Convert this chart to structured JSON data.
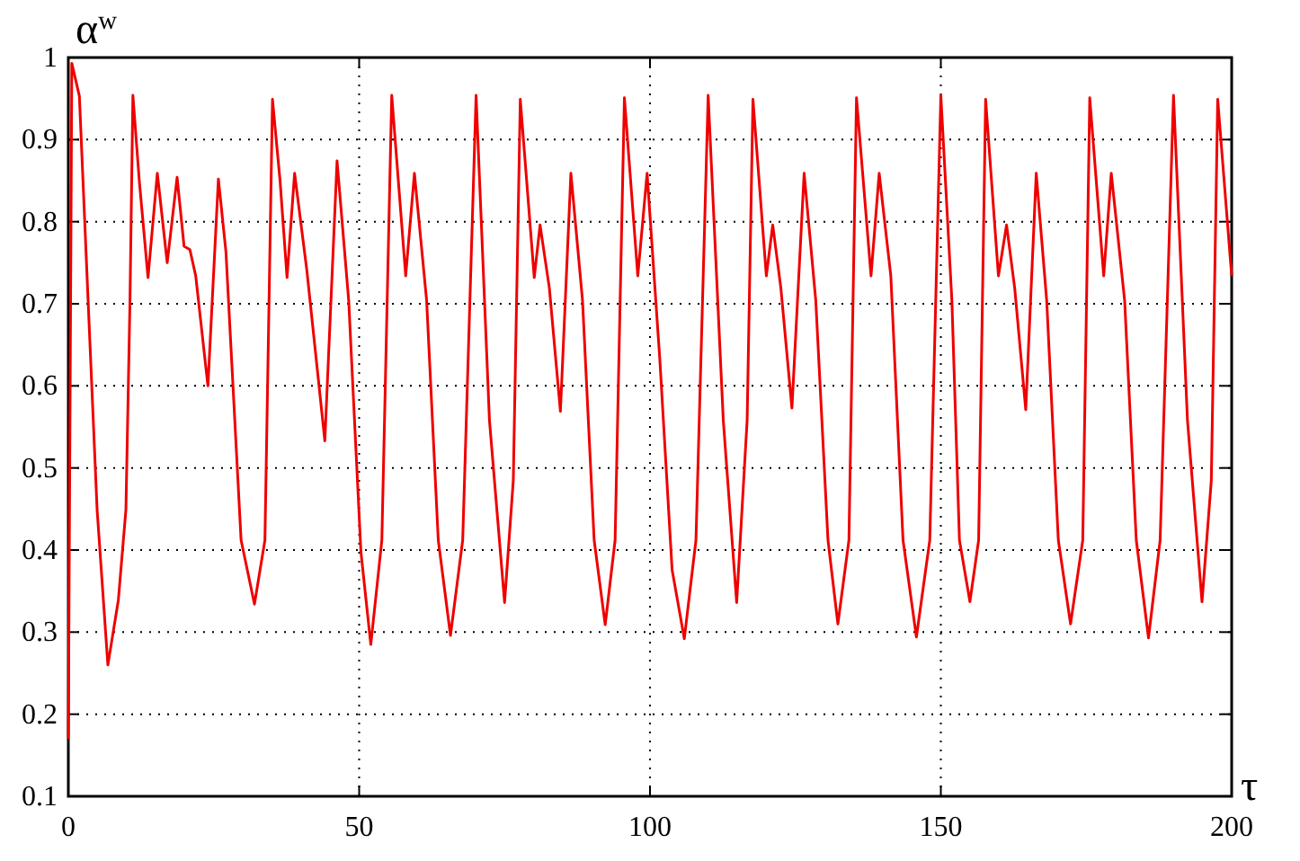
{
  "chart_data": {
    "type": "line",
    "xlabel": "τ",
    "ylabel": "α$^{w}$",
    "xlim": [
      0,
      200
    ],
    "ylim": [
      0.1,
      1
    ],
    "xticks": [
      0,
      50,
      100,
      150,
      200
    ],
    "yticks": [
      0.1,
      0.2,
      0.3,
      0.4,
      0.5,
      0.6,
      0.7,
      0.8,
      0.9,
      1
    ],
    "grid": true,
    "marker": "none",
    "line_style": "solid",
    "series": [
      {
        "color": "#ee0000",
        "x": [
          0,
          0.6,
          1.9,
          3.4,
          4.95,
          6.8,
          8.6,
          9.9,
          10.6,
          11.1,
          12.2,
          13.7,
          15.3,
          17.0,
          18.7,
          19.9,
          20.9,
          21.9,
          24.0,
          25.8,
          27.1,
          29.7,
          32.0,
          33.8,
          35.1,
          36.4,
          37.6,
          38.9,
          41.0,
          44.1,
          46.2,
          48.2,
          50.3,
          52.0,
          53.9,
          55.6,
          58.0,
          59.5,
          61.6,
          63.6,
          65.7,
          67.8,
          70.1,
          72.4,
          75.0,
          76.5,
          77.7,
          80.1,
          81.1,
          82.7,
          84.6,
          86.4,
          88.4,
          90.4,
          92.3,
          94.0,
          95.6,
          97.9,
          99.5,
          101.7,
          103.8,
          105.9,
          107.9,
          110.0,
          112.6,
          114.9,
          116.7,
          117.7,
          120.0,
          121.1,
          122.5,
          124.4,
          126.5,
          128.5,
          130.6,
          132.3,
          134.2,
          135.5,
          138.0,
          139.4,
          141.4,
          143.5,
          145.8,
          148.1,
          150.0,
          151.9,
          153.2,
          155.0,
          156.5,
          157.7,
          159.9,
          161.3,
          162.7,
          164.6,
          166.4,
          168.2,
          170.2,
          172.3,
          174.4,
          175.6,
          178.0,
          179.3,
          181.6,
          183.6,
          185.7,
          187.7,
          190.0,
          192.4,
          194.9,
          196.5,
          197.6,
          200.0
        ],
        "values": [
          0.17,
          0.993,
          0.953,
          0.704,
          0.449,
          0.26,
          0.339,
          0.449,
          0.704,
          0.954,
          0.85,
          0.732,
          0.859,
          0.75,
          0.854,
          0.77,
          0.766,
          0.734,
          0.6,
          0.852,
          0.763,
          0.412,
          0.334,
          0.412,
          0.949,
          0.85,
          0.732,
          0.859,
          0.741,
          0.533,
          0.874,
          0.704,
          0.398,
          0.285,
          0.412,
          0.954,
          0.734,
          0.859,
          0.704,
          0.412,
          0.296,
          0.412,
          0.954,
          0.558,
          0.336,
          0.485,
          0.949,
          0.732,
          0.796,
          0.719,
          0.569,
          0.859,
          0.704,
          0.412,
          0.309,
          0.412,
          0.951,
          0.734,
          0.859,
          0.631,
          0.376,
          0.292,
          0.412,
          0.954,
          0.558,
          0.336,
          0.558,
          0.949,
          0.734,
          0.796,
          0.719,
          0.573,
          0.859,
          0.704,
          0.412,
          0.31,
          0.412,
          0.951,
          0.734,
          0.859,
          0.734,
          0.412,
          0.294,
          0.412,
          0.954,
          0.704,
          0.412,
          0.337,
          0.412,
          0.949,
          0.734,
          0.796,
          0.719,
          0.571,
          0.859,
          0.704,
          0.412,
          0.31,
          0.412,
          0.951,
          0.734,
          0.859,
          0.704,
          0.412,
          0.293,
          0.412,
          0.954,
          0.558,
          0.337,
          0.485,
          0.949,
          0.734
        ]
      }
    ]
  }
}
